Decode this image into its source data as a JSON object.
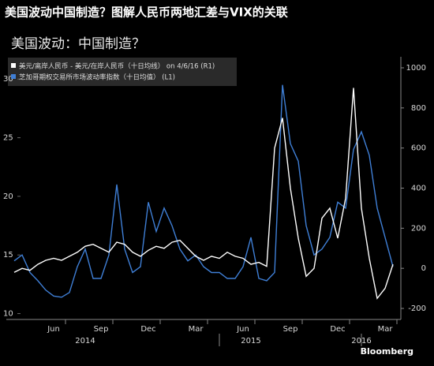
{
  "header": {
    "title": "美国波动中国制造？图解人民币两地汇差与VIX的关联"
  },
  "chart_data": {
    "type": "line",
    "title": "美国波动：中国制造？",
    "categories": [
      null,
      null,
      null,
      null,
      null,
      "Jun",
      null,
      null,
      null,
      null,
      null,
      "Sep",
      null,
      null,
      null,
      null,
      null,
      "Dec",
      null,
      null,
      null,
      null,
      null,
      "Mar",
      null,
      null,
      null,
      null,
      null,
      "Jun",
      null,
      null,
      null,
      null,
      null,
      "Sep",
      null,
      null,
      null,
      null,
      null,
      "Dec",
      null,
      null,
      null,
      null,
      null,
      "Mar",
      null
    ],
    "years": [
      "2014",
      "2015",
      "2016"
    ],
    "series": [
      {
        "name": "美元/离岸人民币 - 美元/在岸人民币（十日均线） on 4/6/16 (R1)",
        "color": "#ffffff",
        "axis": "y2",
        "values": [
          -20,
          0,
          -10,
          20,
          40,
          50,
          40,
          60,
          80,
          110,
          120,
          100,
          80,
          130,
          120,
          80,
          60,
          90,
          110,
          100,
          130,
          140,
          100,
          60,
          40,
          60,
          50,
          80,
          60,
          50,
          20,
          30,
          10,
          600,
          750,
          400,
          150,
          -40,
          0,
          250,
          300,
          150,
          350,
          900,
          300,
          50,
          -150,
          -100,
          20
        ]
      },
      {
        "name": "芝加哥期权交易所市场波动率指数（十日均值） (L1)",
        "color": "#3f7fd6",
        "values": [
          14.5,
          15.0,
          13.5,
          12.8,
          12.0,
          11.5,
          11.4,
          11.8,
          14.0,
          15.5,
          13.0,
          13.0,
          15.0,
          21.0,
          15.5,
          13.5,
          14.0,
          19.5,
          17.0,
          19.0,
          17.5,
          15.5,
          14.5,
          15.0,
          14.0,
          13.5,
          13.5,
          13.0,
          13.0,
          14.0,
          16.5,
          13.0,
          12.8,
          13.5,
          29.5,
          24.5,
          23.0,
          17.5,
          15.0,
          15.5,
          16.5,
          19.5,
          19.0,
          24.0,
          25.5,
          23.5,
          19.0,
          16.5,
          14.0
        ]
      }
    ],
    "ylim": [
      9.5,
      31.9
    ],
    "yticks": [
      10,
      15,
      20,
      25,
      30
    ],
    "y2lim": [
      -255,
      1055
    ],
    "y2ticks": [
      -200,
      0,
      200,
      400,
      600,
      800,
      1000
    ],
    "grid": false,
    "source": "Bloomberg"
  }
}
